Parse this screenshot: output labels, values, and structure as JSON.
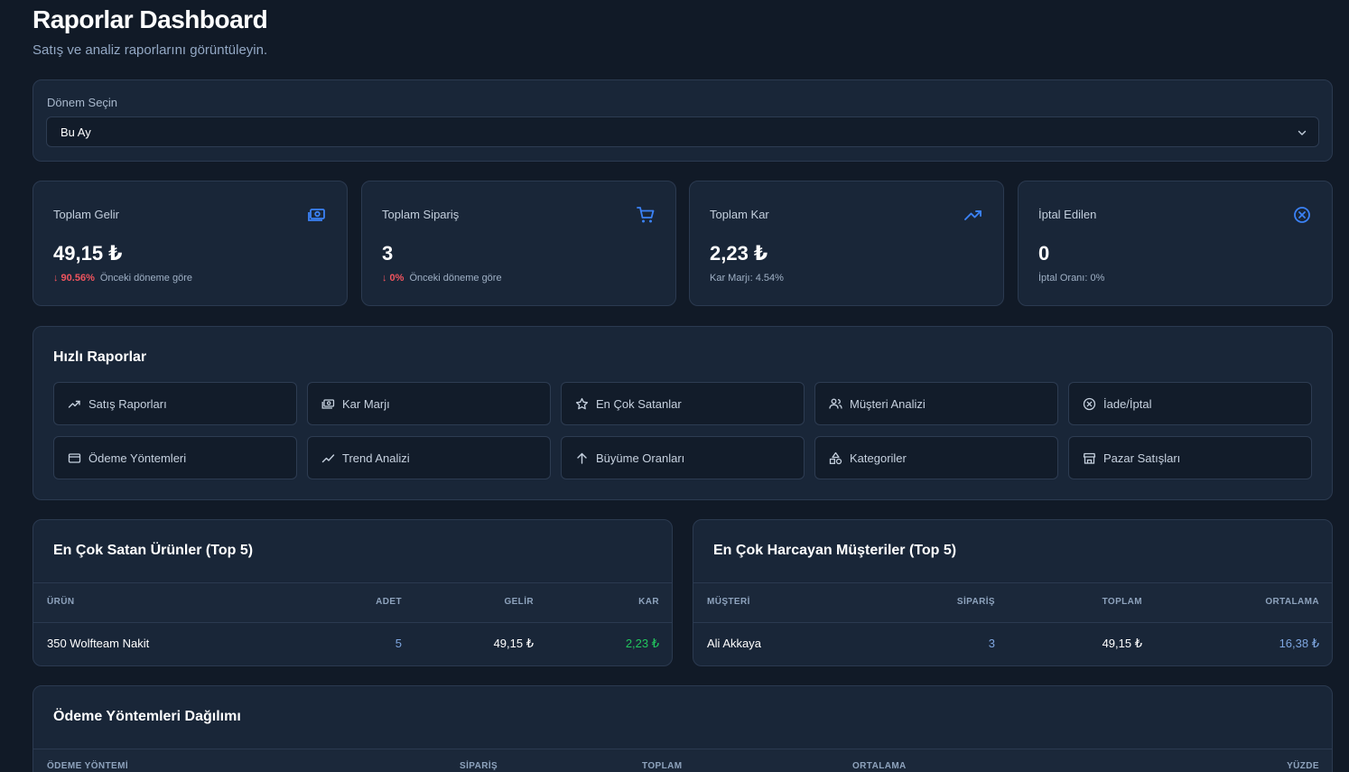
{
  "header": {
    "title": "Raporlar Dashboard",
    "subtitle": "Satış ve analiz raporlarını görüntüleyin."
  },
  "period": {
    "label": "Dönem Seçin",
    "selected": "Bu Ay"
  },
  "stats": [
    {
      "title": "Toplam Gelir",
      "value": "49,15 ₺",
      "change": "↓ 90.56%",
      "note": "Önceki döneme göre",
      "icon": "money-icon"
    },
    {
      "title": "Toplam Sipariş",
      "value": "3",
      "change": "↓ 0%",
      "note": "Önceki döneme göre",
      "icon": "cart-icon"
    },
    {
      "title": "Toplam Kar",
      "value": "2,23 ₺",
      "change": "",
      "note": "Kar Marjı: 4.54%",
      "icon": "trending-up-icon"
    },
    {
      "title": "İptal Edilen",
      "value": "0",
      "change": "",
      "note": "İptal Oranı: 0%",
      "icon": "x-circle-icon"
    }
  ],
  "quick_reports": {
    "title": "Hızlı Raporlar",
    "items": [
      {
        "label": "Satış Raporları",
        "icon": "trending-up-icon"
      },
      {
        "label": "Kar Marjı",
        "icon": "money-icon"
      },
      {
        "label": "En Çok Satanlar",
        "icon": "star-icon"
      },
      {
        "label": "Müşteri Analizi",
        "icon": "users-icon"
      },
      {
        "label": "İade/İptal",
        "icon": "x-circle-icon"
      },
      {
        "label": "Ödeme Yöntemleri",
        "icon": "credit-card-icon"
      },
      {
        "label": "Trend Analizi",
        "icon": "trend-icon"
      },
      {
        "label": "Büyüme Oranları",
        "icon": "arrow-up-icon"
      },
      {
        "label": "Kategoriler",
        "icon": "shapes-icon"
      },
      {
        "label": "Pazar Satışları",
        "icon": "store-icon"
      }
    ]
  },
  "top_products": {
    "title": "En Çok Satan Ürünler (Top 5)",
    "columns": [
      "ÜRÜN",
      "ADET",
      "GELİR",
      "KAR"
    ],
    "rows": [
      {
        "product": "350 Wolfteam Nakit",
        "qty": "5",
        "revenue": "49,15 ₺",
        "profit": "2,23 ₺"
      }
    ]
  },
  "top_customers": {
    "title": "En Çok Harcayan Müşteriler (Top 5)",
    "columns": [
      "MÜŞTERİ",
      "SİPARİŞ",
      "TOPLAM",
      "ORTALAMA"
    ],
    "rows": [
      {
        "customer": "Ali Akkaya",
        "orders": "3",
        "total": "49,15 ₺",
        "average": "16,38 ₺"
      }
    ]
  },
  "payment_methods": {
    "title": "Ödeme Yöntemleri Dağılımı",
    "columns": [
      "ÖDEME YÖNTEMİ",
      "SİPARİŞ",
      "TOPLAM",
      "ORTALAMA",
      "YÜZDE"
    ]
  },
  "colors": {
    "accent": "#3b82f6",
    "negative": "#f0545e",
    "positive": "#22c55e",
    "link": "#7ea6e0"
  }
}
